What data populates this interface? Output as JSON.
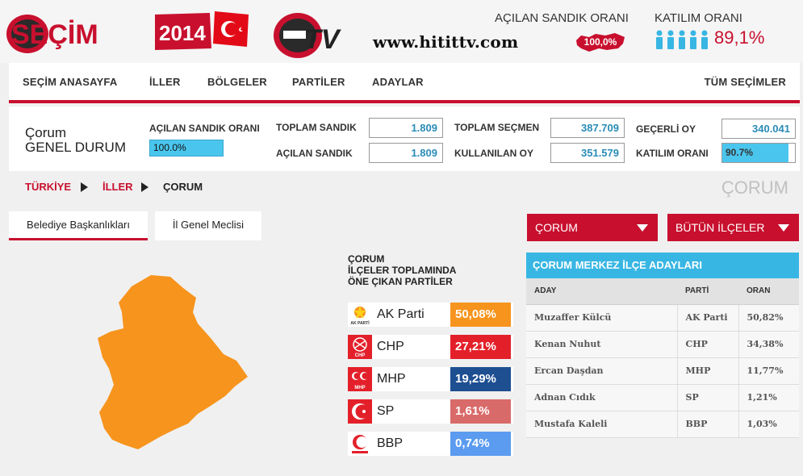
{
  "header": {
    "logo_text": "SEÇİM",
    "logo_year": "2014",
    "tv_logo_text": "TV",
    "site_url": "www.hitittv.com",
    "opened_box_label": "AÇILAN SANDIK ORANI",
    "opened_box_value": "100,0%",
    "turnout_label": "KATILIM ORANI",
    "turnout_value": "89,1%",
    "icons": [
      "flag-icon",
      "turkey-map-icon",
      "person-icon"
    ]
  },
  "nav": {
    "items": [
      "SEÇİM ANASAYFA",
      "İLLER",
      "BÖLGELER",
      "PARTİLER",
      "ADAYLAR"
    ],
    "right_item": "TÜM SEÇİMLER"
  },
  "summary": {
    "city": "Çorum",
    "subtitle": "GENEL DURUM",
    "opened_ratio_label": "AÇILAN SANDIK ORANI",
    "opened_ratio_value": "100.0%",
    "total_boxes_label": "TOPLAM SANDIK",
    "total_boxes_value": "1.809",
    "opened_boxes_label": "AÇILAN SANDIK",
    "opened_boxes_value": "1.809",
    "total_voters_label": "TOPLAM SEÇMEN",
    "total_voters_value": "387.709",
    "votes_cast_label": "KULLANILAN OY",
    "votes_cast_value": "351.579",
    "valid_votes_label": "GEÇERLİ OY",
    "valid_votes_value": "340.041",
    "turnout_label": "KATILIM ORANI",
    "turnout_value": "90.7%",
    "turnout_fraction": 0.907
  },
  "breadcrumb": {
    "items": [
      "TÜRKİYE",
      "İLLER",
      "ÇORUM"
    ],
    "page_heading": "ÇORUM"
  },
  "tabs": [
    "Belediye Başkanlıkları",
    "İl Genel Meclisi"
  ],
  "parties_panel": {
    "title_lines": [
      "ÇORUM",
      "İLÇELER TOPLAMINDA",
      "ÖNE ÇIKAN PARTİLER"
    ],
    "parties": [
      {
        "name": "AK Parti",
        "pct": "50,08%",
        "color": "#f7941d",
        "logo": "ak-parti-logo-icon",
        "logo_text": "AK PARTİ"
      },
      {
        "name": "CHP",
        "pct": "27,21%",
        "color": "#e3202a",
        "logo": "chp-logo-icon",
        "logo_text": "CHP"
      },
      {
        "name": "MHP",
        "pct": "19,29%",
        "color": "#1d4f91",
        "logo": "mhp-logo-icon",
        "logo_text": "MHP"
      },
      {
        "name": "SP",
        "pct": "1,61%",
        "color": "#d96a6a",
        "logo": "sp-logo-icon",
        "logo_text": ""
      },
      {
        "name": "BBP",
        "pct": "0,74%",
        "color": "#5b9bf0",
        "logo": "bbp-logo-icon",
        "logo_text": ""
      }
    ]
  },
  "map": {
    "fill_color": "#f7941d",
    "icon": "corum-province-map-icon"
  },
  "dropdowns": {
    "province": "ÇORUM",
    "district": "BÜTÜN İLÇELER"
  },
  "candidates": {
    "title": "ÇORUM MERKEZ İLÇE ADAYLARI",
    "columns": [
      "ADAY",
      "PARTİ",
      "ORAN"
    ],
    "rows": [
      [
        "Muzaffer Külcü",
        "AK Parti",
        "50,82%"
      ],
      [
        "Kenan Nuhut",
        "CHP",
        "34,38%"
      ],
      [
        "Ercan Daşdan",
        "MHP",
        "11,77%"
      ],
      [
        "Adnan Cıdık",
        "SP",
        "1,21%"
      ],
      [
        "Mustafa Kaleli",
        "BBP",
        "1,03%"
      ]
    ]
  },
  "colors": {
    "accent": "#c8102e",
    "info": "#38b6e3"
  }
}
